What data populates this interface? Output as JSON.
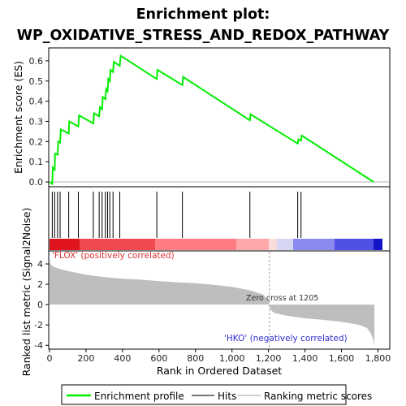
{
  "title_line1": "Enrichment plot:",
  "title_line2": "WP_OXIDATIVE_STRESS_AND_REDOX_PATHWAY",
  "legend": {
    "profile_label": "Enrichment profile",
    "hits_label": "Hits",
    "metric_label": "Ranking metric scores"
  },
  "annotations": {
    "positive": "'FLOX' (positively correlated)",
    "negative": "'HKO' (negatively correlated)",
    "zero_cross": "Zero cross at 1205"
  },
  "colors": {
    "profile": "#00ee00",
    "hits": "#000000",
    "metric_fill": "#bebebe",
    "positive_text": "#e03030",
    "negative_text": "#3030d0"
  },
  "chart_data": [
    {
      "type": "line",
      "ylabel": "Enrichment score (ES)",
      "ylim": [
        -0.02,
        0.66
      ],
      "yticks": [
        0.0,
        0.1,
        0.2,
        0.3,
        0.4,
        0.5,
        0.6
      ],
      "ytick_labels": [
        "0.0",
        "0.1",
        "0.2",
        "0.3",
        "0.4",
        "0.5",
        "0.6"
      ],
      "xlim": [
        0,
        1860
      ],
      "series": [
        {
          "points": [
            [
              0,
              0.0
            ],
            [
              15,
              -0.01
            ],
            [
              18,
              0.07
            ],
            [
              28,
              0.06
            ],
            [
              30,
              0.14
            ],
            [
              44,
              0.135
            ],
            [
              48,
              0.2
            ],
            [
              58,
              0.195
            ],
            [
              62,
              0.26
            ],
            [
              105,
              0.24
            ],
            [
              108,
              0.3
            ],
            [
              158,
              0.275
            ],
            [
              162,
              0.33
            ],
            [
              240,
              0.29
            ],
            [
              244,
              0.34
            ],
            [
              272,
              0.325
            ],
            [
              276,
              0.37
            ],
            [
              288,
              0.36
            ],
            [
              292,
              0.42
            ],
            [
              306,
              0.41
            ],
            [
              310,
              0.46
            ],
            [
              318,
              0.45
            ],
            [
              322,
              0.51
            ],
            [
              330,
              0.5
            ],
            [
              334,
              0.555
            ],
            [
              348,
              0.545
            ],
            [
              352,
              0.595
            ],
            [
              385,
              0.575
            ],
            [
              390,
              0.625
            ],
            [
              588,
              0.51
            ],
            [
              592,
              0.555
            ],
            [
              728,
              0.48
            ],
            [
              732,
              0.52
            ],
            [
              1098,
              0.305
            ],
            [
              1102,
              0.335
            ],
            [
              1360,
              0.19
            ],
            [
              1364,
              0.21
            ],
            [
              1378,
              0.205
            ],
            [
              1382,
              0.23
            ],
            [
              1775,
              0.0
            ]
          ]
        }
      ]
    },
    {
      "type": "hits",
      "positions": [
        15,
        28,
        44,
        58,
        105,
        158,
        240,
        272,
        288,
        306,
        318,
        330,
        348,
        385,
        588,
        728,
        1098,
        1360,
        1378
      ],
      "xlim": [
        0,
        1860
      ]
    },
    {
      "type": "area",
      "ylabel": "Ranked list metric (Signal2Noise)",
      "xlabel": "Rank in Ordered Dataset",
      "ylim": [
        -4.3,
        5.2
      ],
      "yticks": [
        -4,
        -2,
        0,
        2,
        4
      ],
      "ytick_labels": [
        "-4",
        "-2",
        "0",
        "2",
        "4"
      ],
      "xlim": [
        0,
        1860
      ],
      "xticks": [
        0,
        200,
        400,
        600,
        800,
        1000,
        1200,
        1400,
        1600,
        1800
      ],
      "xtick_labels": [
        "0",
        "200",
        "400",
        "600",
        "800",
        "1,000",
        "1,200",
        "1,400",
        "1,600",
        "1,800"
      ],
      "zero_cross": 1205,
      "points": [
        [
          0,
          4.4
        ],
        [
          5,
          4.0
        ],
        [
          20,
          3.75
        ],
        [
          50,
          3.55
        ],
        [
          100,
          3.3
        ],
        [
          200,
          2.95
        ],
        [
          300,
          2.7
        ],
        [
          400,
          2.55
        ],
        [
          500,
          2.45
        ],
        [
          600,
          2.3
        ],
        [
          700,
          2.2
        ],
        [
          800,
          2.1
        ],
        [
          900,
          1.95
        ],
        [
          1000,
          1.75
        ],
        [
          1100,
          1.4
        ],
        [
          1170,
          1.0
        ],
        [
          1200,
          0.4
        ],
        [
          1205,
          0.0
        ],
        [
          1210,
          -0.5
        ],
        [
          1230,
          -0.8
        ],
        [
          1300,
          -1.1
        ],
        [
          1400,
          -1.35
        ],
        [
          1500,
          -1.5
        ],
        [
          1600,
          -1.7
        ],
        [
          1700,
          -2.0
        ],
        [
          1740,
          -2.3
        ],
        [
          1760,
          -2.8
        ],
        [
          1775,
          -3.5
        ],
        [
          1780,
          -4.2
        ]
      ]
    }
  ]
}
